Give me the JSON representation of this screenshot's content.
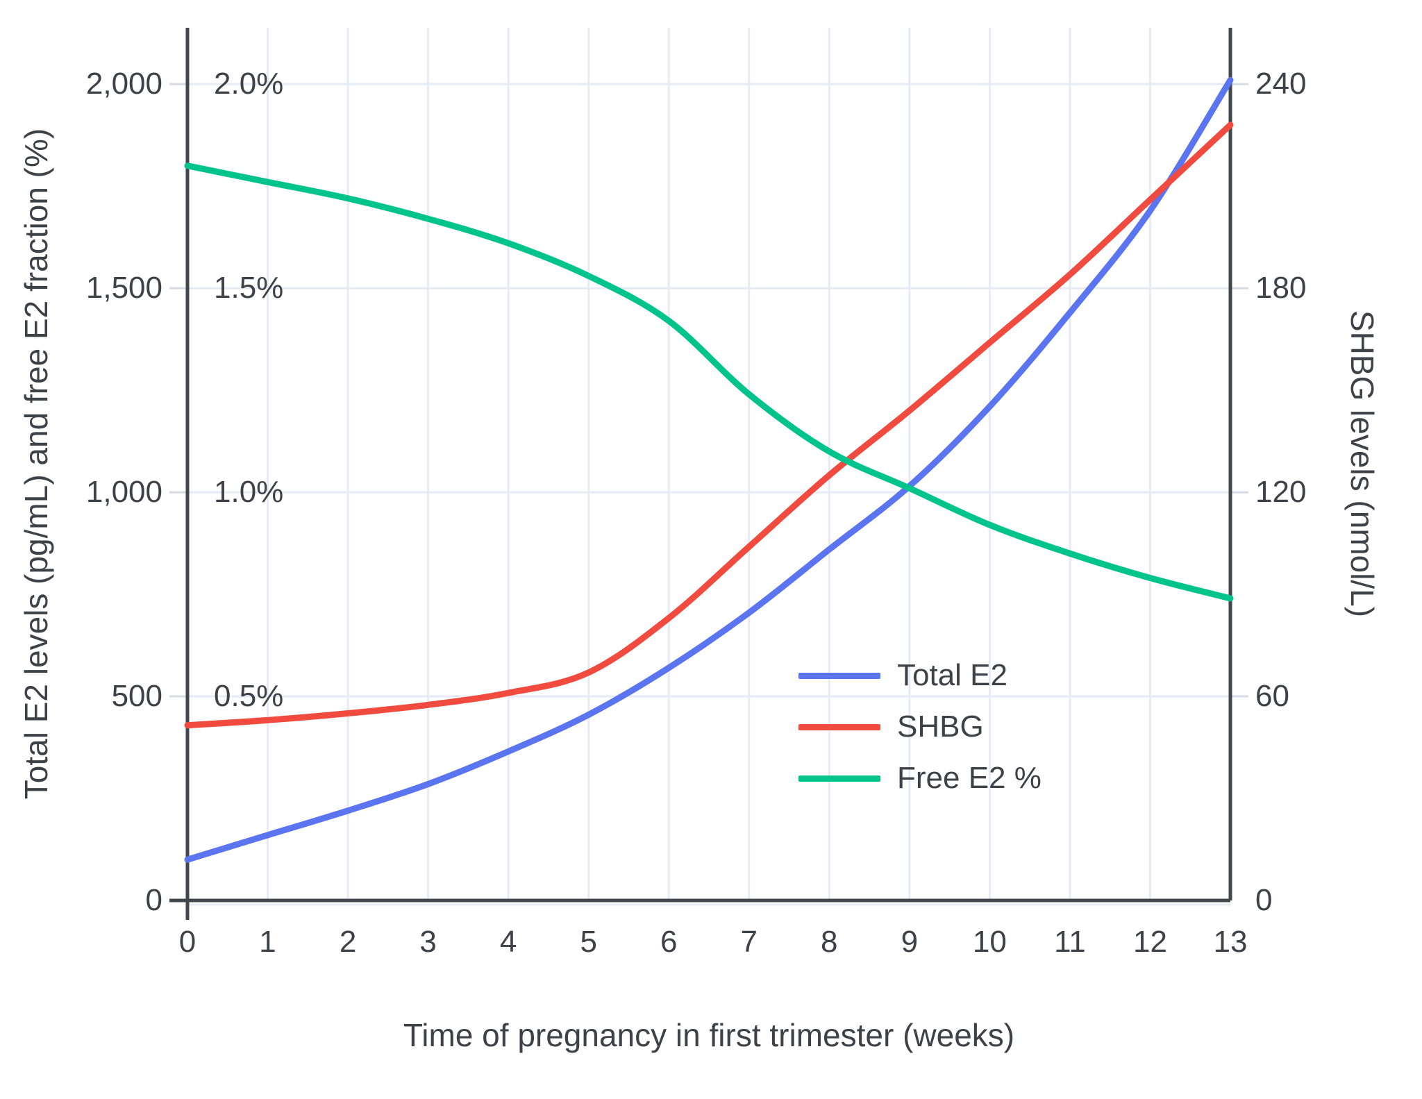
{
  "figure": {
    "background": "#ffffff",
    "text_color": "#3d4248",
    "axis_line_color": "#42474d",
    "grid_color": "#e7ebf6",
    "tick_dash_color": "#d6dbe6"
  },
  "chart_data": {
    "type": "line",
    "title": "",
    "xlabel": "Time of pregnancy in first trimester (weeks)",
    "ylabel_left": "Total E2 levels (pg/mL) and free E2 fraction (%)",
    "ylabel_right": "SHBG levels (nmol/L)",
    "x": [
      0,
      1,
      2,
      3,
      4,
      5,
      6,
      7,
      8,
      9,
      10,
      11,
      12,
      13
    ],
    "x_tick_labels": [
      "0",
      "1",
      "2",
      "3",
      "4",
      "5",
      "6",
      "7",
      "8",
      "9",
      "10",
      "11",
      "12",
      "13"
    ],
    "xlim": [
      0,
      13
    ],
    "ylim_left": [
      0,
      2138
    ],
    "ylim_right": [
      0,
      256.6
    ],
    "grid": true,
    "legend_position": "center-right",
    "series": [
      {
        "name": "Total E2",
        "axis": "left",
        "unit": "pg/mL",
        "color": "#5B74F0",
        "values": [
          100,
          160,
          220,
          285,
          365,
          455,
          570,
          705,
          860,
          1015,
          1210,
          1440,
          1690,
          2010
        ]
      },
      {
        "name": "SHBG",
        "axis": "right",
        "unit": "nmol/L",
        "color": "#F04B3E",
        "values": [
          51.5,
          53,
          55,
          57.5,
          61,
          67,
          83,
          104,
          125,
          144,
          164,
          184,
          206,
          228
        ]
      },
      {
        "name": "Free E2 %",
        "axis": "percent",
        "unit": "%",
        "color": "#00C48C",
        "values": [
          1.8,
          1.76,
          1.72,
          1.67,
          1.61,
          1.53,
          1.42,
          1.24,
          1.1,
          1.01,
          0.92,
          0.85,
          0.79,
          0.74
        ]
      }
    ],
    "left_ticks": [
      {
        "value": 0,
        "label": "0"
      },
      {
        "value": 500,
        "label": "500"
      },
      {
        "value": 1000,
        "label": "1,000"
      },
      {
        "value": 1500,
        "label": "1,500"
      },
      {
        "value": 2000,
        "label": "2,000"
      }
    ],
    "percent_ticks": [
      {
        "value": 500,
        "label": "0.5%"
      },
      {
        "value": 1000,
        "label": "1.0%"
      },
      {
        "value": 1500,
        "label": "1.5%"
      },
      {
        "value": 2000,
        "label": "2.0%"
      }
    ],
    "right_ticks": [
      {
        "value": 0,
        "label": "0"
      },
      {
        "value": 60,
        "label": "60"
      },
      {
        "value": 120,
        "label": "120"
      },
      {
        "value": 180,
        "label": "180"
      },
      {
        "value": 240,
        "label": "240"
      }
    ]
  }
}
